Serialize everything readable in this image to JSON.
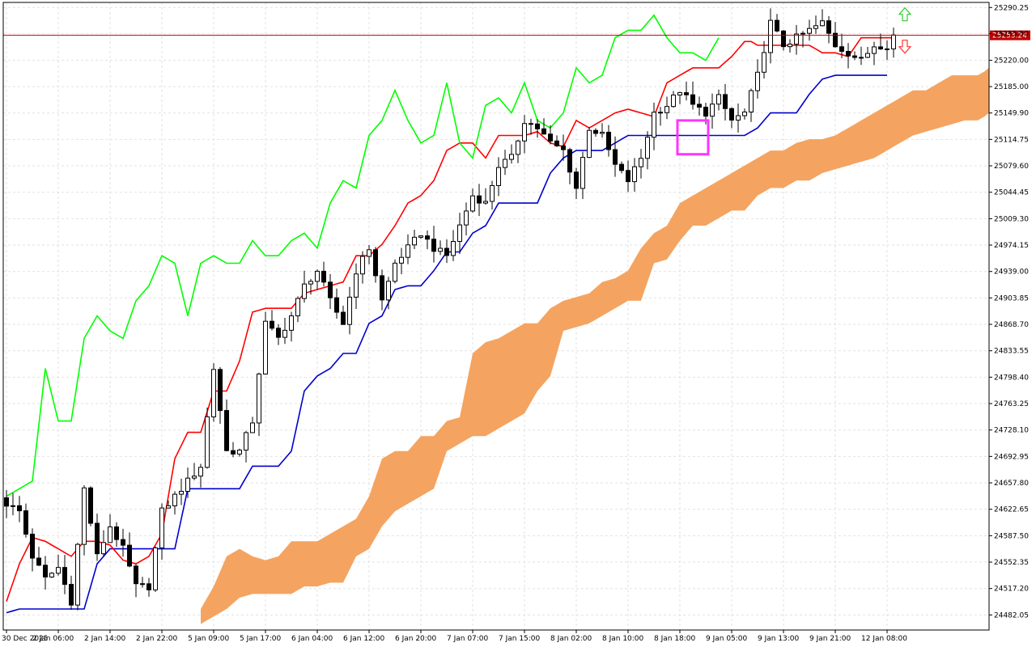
{
  "chart_data": {
    "type": "candlestick",
    "indicator": "Ichimoku Kinko Hyo",
    "y_ticks": [
      "25290.25",
      "25255.50",
      "25220.00",
      "25185.00",
      "25149.90",
      "25114.75",
      "25079.60",
      "25044.45",
      "25009.30",
      "24974.15",
      "24939.00",
      "24903.85",
      "24868.70",
      "24833.55",
      "24798.40",
      "24763.25",
      "24728.10",
      "24692.95",
      "24657.80",
      "24622.65",
      "24587.50",
      "24552.35",
      "24517.20",
      "24482.05"
    ],
    "ylim": [
      24462,
      25297
    ],
    "x_tick_labels": [
      "30 Dec 2025",
      "2 Jan 06:00",
      "2 Jan 14:00",
      "2 Jan 22:00",
      "5 Jan 09:00",
      "5 Jan 17:00",
      "6 Jan 04:00",
      "6 Jan 12:00",
      "6 Jan 20:00",
      "7 Jan 07:00",
      "7 Jan 15:00",
      "8 Jan 02:00",
      "8 Jan 10:00",
      "8 Jan 18:00",
      "9 Jan 05:00",
      "9 Jan 13:00",
      "9 Jan 21:00",
      "12 Jan 08:00"
    ],
    "x_tick_bar_index": [
      0,
      8,
      16,
      24,
      32,
      40,
      48,
      56,
      64,
      72,
      80,
      88,
      96,
      104,
      112,
      120,
      128,
      136
    ],
    "bars_total": 138,
    "future_bars": 15,
    "current_price": "25253.24",
    "current_price_value": 25253.24,
    "colors": {
      "background": "#ffffff",
      "grid": "#e2e2e2",
      "bull_candle": "#ffffff",
      "bear_candle": "#000000",
      "candle_outline": "#000000",
      "tenkan": "#ff0000",
      "kijun": "#0000cd",
      "chikou": "#00ff00",
      "kumo": "#f4a460",
      "price_line": "#c00000",
      "marker": "#ff33ff",
      "arrow_up": "#33cc33",
      "arrow_down": "#ff3333"
    },
    "close_anchors": [
      [
        0,
        24630
      ],
      [
        2,
        24620
      ],
      [
        4,
        24560
      ],
      [
        6,
        24530
      ],
      [
        8,
        24545
      ],
      [
        10,
        24500
      ],
      [
        12,
        24650
      ],
      [
        14,
        24560
      ],
      [
        16,
        24600
      ],
      [
        18,
        24570
      ],
      [
        20,
        24520
      ],
      [
        22,
        24520
      ],
      [
        24,
        24620
      ],
      [
        26,
        24640
      ],
      [
        28,
        24660
      ],
      [
        30,
        24680
      ],
      [
        32,
        24810
      ],
      [
        34,
        24700
      ],
      [
        36,
        24700
      ],
      [
        38,
        24740
      ],
      [
        40,
        24870
      ],
      [
        42,
        24850
      ],
      [
        44,
        24880
      ],
      [
        46,
        24920
      ],
      [
        48,
        24940
      ],
      [
        50,
        24900
      ],
      [
        52,
        24870
      ],
      [
        54,
        24940
      ],
      [
        56,
        24970
      ],
      [
        58,
        24900
      ],
      [
        60,
        24950
      ],
      [
        62,
        24970
      ],
      [
        64,
        24990
      ],
      [
        66,
        24970
      ],
      [
        68,
        24960
      ],
      [
        70,
        25000
      ],
      [
        72,
        25040
      ],
      [
        74,
        25030
      ],
      [
        76,
        25080
      ],
      [
        78,
        25090
      ],
      [
        80,
        25140
      ],
      [
        82,
        25130
      ],
      [
        84,
        25110
      ],
      [
        86,
        25100
      ],
      [
        88,
        25050
      ],
      [
        90,
        25130
      ],
      [
        92,
        25120
      ],
      [
        94,
        25080
      ],
      [
        96,
        25060
      ],
      [
        98,
        25090
      ],
      [
        100,
        25150
      ],
      [
        102,
        25160
      ],
      [
        104,
        25180
      ],
      [
        106,
        25160
      ],
      [
        108,
        25150
      ],
      [
        110,
        25170
      ],
      [
        112,
        25140
      ],
      [
        114,
        25150
      ],
      [
        116,
        25200
      ],
      [
        118,
        25270
      ],
      [
        120,
        25240
      ],
      [
        122,
        25250
      ],
      [
        124,
        25260
      ],
      [
        126,
        25270
      ],
      [
        128,
        25240
      ],
      [
        130,
        25230
      ],
      [
        132,
        25220
      ],
      [
        134,
        25240
      ],
      [
        136,
        25240
      ],
      [
        137,
        25253.24
      ]
    ],
    "tenkan_anchors": [
      [
        0,
        24500
      ],
      [
        2,
        24550
      ],
      [
        4,
        24585
      ],
      [
        6,
        24580
      ],
      [
        8,
        24570
      ],
      [
        10,
        24560
      ],
      [
        12,
        24580
      ],
      [
        14,
        24580
      ],
      [
        16,
        24575
      ],
      [
        18,
        24555
      ],
      [
        20,
        24550
      ],
      [
        22,
        24560
      ],
      [
        24,
        24590
      ],
      [
        26,
        24690
      ],
      [
        28,
        24725
      ],
      [
        30,
        24725
      ],
      [
        32,
        24780
      ],
      [
        34,
        24780
      ],
      [
        36,
        24820
      ],
      [
        38,
        24885
      ],
      [
        40,
        24890
      ],
      [
        42,
        24890
      ],
      [
        44,
        24890
      ],
      [
        46,
        24910
      ],
      [
        48,
        24915
      ],
      [
        50,
        24920
      ],
      [
        52,
        24925
      ],
      [
        54,
        24960
      ],
      [
        56,
        24960
      ],
      [
        58,
        24975
      ],
      [
        60,
        25000
      ],
      [
        62,
        25030
      ],
      [
        64,
        25040
      ],
      [
        66,
        25060
      ],
      [
        68,
        25100
      ],
      [
        70,
        25110
      ],
      [
        72,
        25110
      ],
      [
        74,
        25090
      ],
      [
        76,
        25120
      ],
      [
        78,
        25120
      ],
      [
        80,
        25120
      ],
      [
        82,
        25125
      ],
      [
        84,
        25110
      ],
      [
        86,
        25105
      ],
      [
        88,
        25140
      ],
      [
        90,
        25130
      ],
      [
        92,
        25140
      ],
      [
        94,
        25150
      ],
      [
        96,
        25155
      ],
      [
        98,
        25150
      ],
      [
        100,
        25145
      ],
      [
        102,
        25190
      ],
      [
        104,
        25200
      ],
      [
        106,
        25210
      ],
      [
        108,
        25210
      ],
      [
        110,
        25210
      ],
      [
        112,
        25225
      ],
      [
        114,
        25245
      ],
      [
        115,
        25245
      ],
      [
        116,
        25240
      ],
      [
        118,
        25240
      ],
      [
        120,
        25240
      ],
      [
        122,
        25240
      ],
      [
        124,
        25240
      ],
      [
        126,
        25230
      ],
      [
        128,
        25230
      ],
      [
        130,
        25225
      ],
      [
        132,
        25250
      ],
      [
        134,
        25250
      ],
      [
        136,
        25250
      ],
      [
        137,
        25250
      ]
    ],
    "kijun_anchors": [
      [
        0,
        24485
      ],
      [
        2,
        24490
      ],
      [
        4,
        24490
      ],
      [
        6,
        24490
      ],
      [
        8,
        24490
      ],
      [
        10,
        24490
      ],
      [
        12,
        24490
      ],
      [
        14,
        24550
      ],
      [
        16,
        24570
      ],
      [
        18,
        24570
      ],
      [
        20,
        24570
      ],
      [
        22,
        24570
      ],
      [
        24,
        24570
      ],
      [
        26,
        24570
      ],
      [
        28,
        24650
      ],
      [
        30,
        24650
      ],
      [
        32,
        24650
      ],
      [
        34,
        24650
      ],
      [
        36,
        24650
      ],
      [
        38,
        24680
      ],
      [
        40,
        24680
      ],
      [
        42,
        24680
      ],
      [
        44,
        24700
      ],
      [
        46,
        24780
      ],
      [
        48,
        24800
      ],
      [
        50,
        24810
      ],
      [
        52,
        24830
      ],
      [
        54,
        24830
      ],
      [
        56,
        24870
      ],
      [
        58,
        24880
      ],
      [
        60,
        24915
      ],
      [
        62,
        24920
      ],
      [
        64,
        24920
      ],
      [
        66,
        24940
      ],
      [
        68,
        24965
      ],
      [
        70,
        24965
      ],
      [
        72,
        24990
      ],
      [
        74,
        25000
      ],
      [
        76,
        25030
      ],
      [
        78,
        25030
      ],
      [
        80,
        25030
      ],
      [
        82,
        25030
      ],
      [
        84,
        25070
      ],
      [
        86,
        25090
      ],
      [
        88,
        25100
      ],
      [
        90,
        25100
      ],
      [
        92,
        25100
      ],
      [
        94,
        25110
      ],
      [
        96,
        25120
      ],
      [
        98,
        25120
      ],
      [
        100,
        25120
      ],
      [
        102,
        25120
      ],
      [
        104,
        25120
      ],
      [
        106,
        25120
      ],
      [
        108,
        25120
      ],
      [
        110,
        25120
      ],
      [
        112,
        25120
      ],
      [
        114,
        25120
      ],
      [
        116,
        25130
      ],
      [
        118,
        25150
      ],
      [
        120,
        25150
      ],
      [
        122,
        25150
      ],
      [
        124,
        25175
      ],
      [
        126,
        25195
      ],
      [
        128,
        25200
      ],
      [
        130,
        25200
      ],
      [
        132,
        25200
      ],
      [
        134,
        25200
      ],
      [
        136,
        25200
      ]
    ],
    "chikou_anchors": [
      [
        0,
        24640
      ],
      [
        2,
        24650
      ],
      [
        4,
        24660
      ],
      [
        6,
        24810
      ],
      [
        8,
        24740
      ],
      [
        10,
        24740
      ],
      [
        12,
        24850
      ],
      [
        14,
        24880
      ],
      [
        16,
        24860
      ],
      [
        18,
        24850
      ],
      [
        20,
        24900
      ],
      [
        22,
        24920
      ],
      [
        24,
        24960
      ],
      [
        26,
        24950
      ],
      [
        28,
        24880
      ],
      [
        30,
        24950
      ],
      [
        32,
        24960
      ],
      [
        34,
        24950
      ],
      [
        36,
        24950
      ],
      [
        38,
        24980
      ],
      [
        40,
        24960
      ],
      [
        42,
        24960
      ],
      [
        44,
        24980
      ],
      [
        46,
        24990
      ],
      [
        48,
        24970
      ],
      [
        50,
        25030
      ],
      [
        52,
        25060
      ],
      [
        54,
        25050
      ],
      [
        56,
        25120
      ],
      [
        58,
        25140
      ],
      [
        60,
        25180
      ],
      [
        62,
        25140
      ],
      [
        64,
        25110
      ],
      [
        66,
        25120
      ],
      [
        68,
        25190
      ],
      [
        70,
        25110
      ],
      [
        72,
        25090
      ],
      [
        74,
        25160
      ],
      [
        76,
        25170
      ],
      [
        78,
        25150
      ],
      [
        80,
        25190
      ],
      [
        82,
        25140
      ],
      [
        84,
        25130
      ],
      [
        86,
        25150
      ],
      [
        88,
        25210
      ],
      [
        90,
        25190
      ],
      [
        92,
        25200
      ],
      [
        94,
        25250
      ],
      [
        96,
        25260
      ],
      [
        98,
        25260
      ],
      [
        100,
        25280
      ],
      [
        102,
        25250
      ],
      [
        104,
        25230
      ],
      [
        106,
        25230
      ],
      [
        108,
        25220
      ],
      [
        110,
        25250
      ]
    ],
    "senkou_a_anchors": [
      [
        30,
        24490
      ],
      [
        32,
        24520
      ],
      [
        34,
        24560
      ],
      [
        36,
        24570
      ],
      [
        38,
        24560
      ],
      [
        40,
        24555
      ],
      [
        42,
        24560
      ],
      [
        44,
        24580
      ],
      [
        46,
        24580
      ],
      [
        48,
        24580
      ],
      [
        50,
        24590
      ],
      [
        52,
        24600
      ],
      [
        54,
        24610
      ],
      [
        56,
        24640
      ],
      [
        58,
        24690
      ],
      [
        60,
        24700
      ],
      [
        62,
        24700
      ],
      [
        64,
        24720
      ],
      [
        66,
        24720
      ],
      [
        68,
        24740
      ],
      [
        70,
        24745
      ],
      [
        72,
        24830
      ],
      [
        74,
        24845
      ],
      [
        76,
        24850
      ],
      [
        78,
        24860
      ],
      [
        80,
        24870
      ],
      [
        82,
        24870
      ],
      [
        84,
        24890
      ],
      [
        86,
        24900
      ],
      [
        88,
        24905
      ],
      [
        90,
        24910
      ],
      [
        92,
        24925
      ],
      [
        94,
        24930
      ],
      [
        96,
        24940
      ],
      [
        98,
        24970
      ],
      [
        100,
        24990
      ],
      [
        102,
        25000
      ],
      [
        104,
        25030
      ],
      [
        106,
        25040
      ],
      [
        108,
        25050
      ],
      [
        110,
        25060
      ],
      [
        112,
        25070
      ],
      [
        114,
        25080
      ],
      [
        116,
        25090
      ],
      [
        118,
        25100
      ],
      [
        120,
        25100
      ],
      [
        122,
        25110
      ],
      [
        124,
        25115
      ],
      [
        126,
        25115
      ],
      [
        128,
        25120
      ],
      [
        130,
        25130
      ],
      [
        132,
        25140
      ],
      [
        134,
        25150
      ],
      [
        136,
        25160
      ],
      [
        138,
        25170
      ],
      [
        140,
        25180
      ],
      [
        142,
        25180
      ],
      [
        144,
        25190
      ],
      [
        146,
        25200
      ],
      [
        148,
        25200
      ],
      [
        150,
        25200
      ],
      [
        152,
        25210
      ]
    ],
    "senkou_b_anchors": [
      [
        30,
        24470
      ],
      [
        32,
        24480
      ],
      [
        34,
        24490
      ],
      [
        36,
        24505
      ],
      [
        38,
        24510
      ],
      [
        40,
        24510
      ],
      [
        42,
        24510
      ],
      [
        44,
        24510
      ],
      [
        46,
        24520
      ],
      [
        48,
        24520
      ],
      [
        50,
        24525
      ],
      [
        52,
        24525
      ],
      [
        54,
        24560
      ],
      [
        56,
        24570
      ],
      [
        58,
        24600
      ],
      [
        60,
        24620
      ],
      [
        62,
        24630
      ],
      [
        64,
        24640
      ],
      [
        66,
        24650
      ],
      [
        68,
        24700
      ],
      [
        70,
        24710
      ],
      [
        72,
        24720
      ],
      [
        74,
        24720
      ],
      [
        76,
        24730
      ],
      [
        78,
        24740
      ],
      [
        80,
        24750
      ],
      [
        82,
        24780
      ],
      [
        84,
        24800
      ],
      [
        86,
        24860
      ],
      [
        88,
        24865
      ],
      [
        90,
        24870
      ],
      [
        92,
        24880
      ],
      [
        94,
        24890
      ],
      [
        96,
        24900
      ],
      [
        98,
        24900
      ],
      [
        100,
        24950
      ],
      [
        102,
        24955
      ],
      [
        104,
        24980
      ],
      [
        106,
        25000
      ],
      [
        108,
        25000
      ],
      [
        110,
        25010
      ],
      [
        112,
        25020
      ],
      [
        114,
        25020
      ],
      [
        116,
        25040
      ],
      [
        118,
        25050
      ],
      [
        120,
        25050
      ],
      [
        122,
        25060
      ],
      [
        124,
        25060
      ],
      [
        126,
        25070
      ],
      [
        128,
        25075
      ],
      [
        130,
        25080
      ],
      [
        132,
        25085
      ],
      [
        134,
        25090
      ],
      [
        136,
        25100
      ],
      [
        138,
        25110
      ],
      [
        140,
        25120
      ],
      [
        142,
        25125
      ],
      [
        144,
        25130
      ],
      [
        146,
        25135
      ],
      [
        148,
        25140
      ],
      [
        150,
        25140
      ],
      [
        152,
        25150
      ]
    ],
    "marker": {
      "bar_start": 104,
      "bar_end": 108,
      "price_low": 25095,
      "price_high": 25140
    }
  }
}
